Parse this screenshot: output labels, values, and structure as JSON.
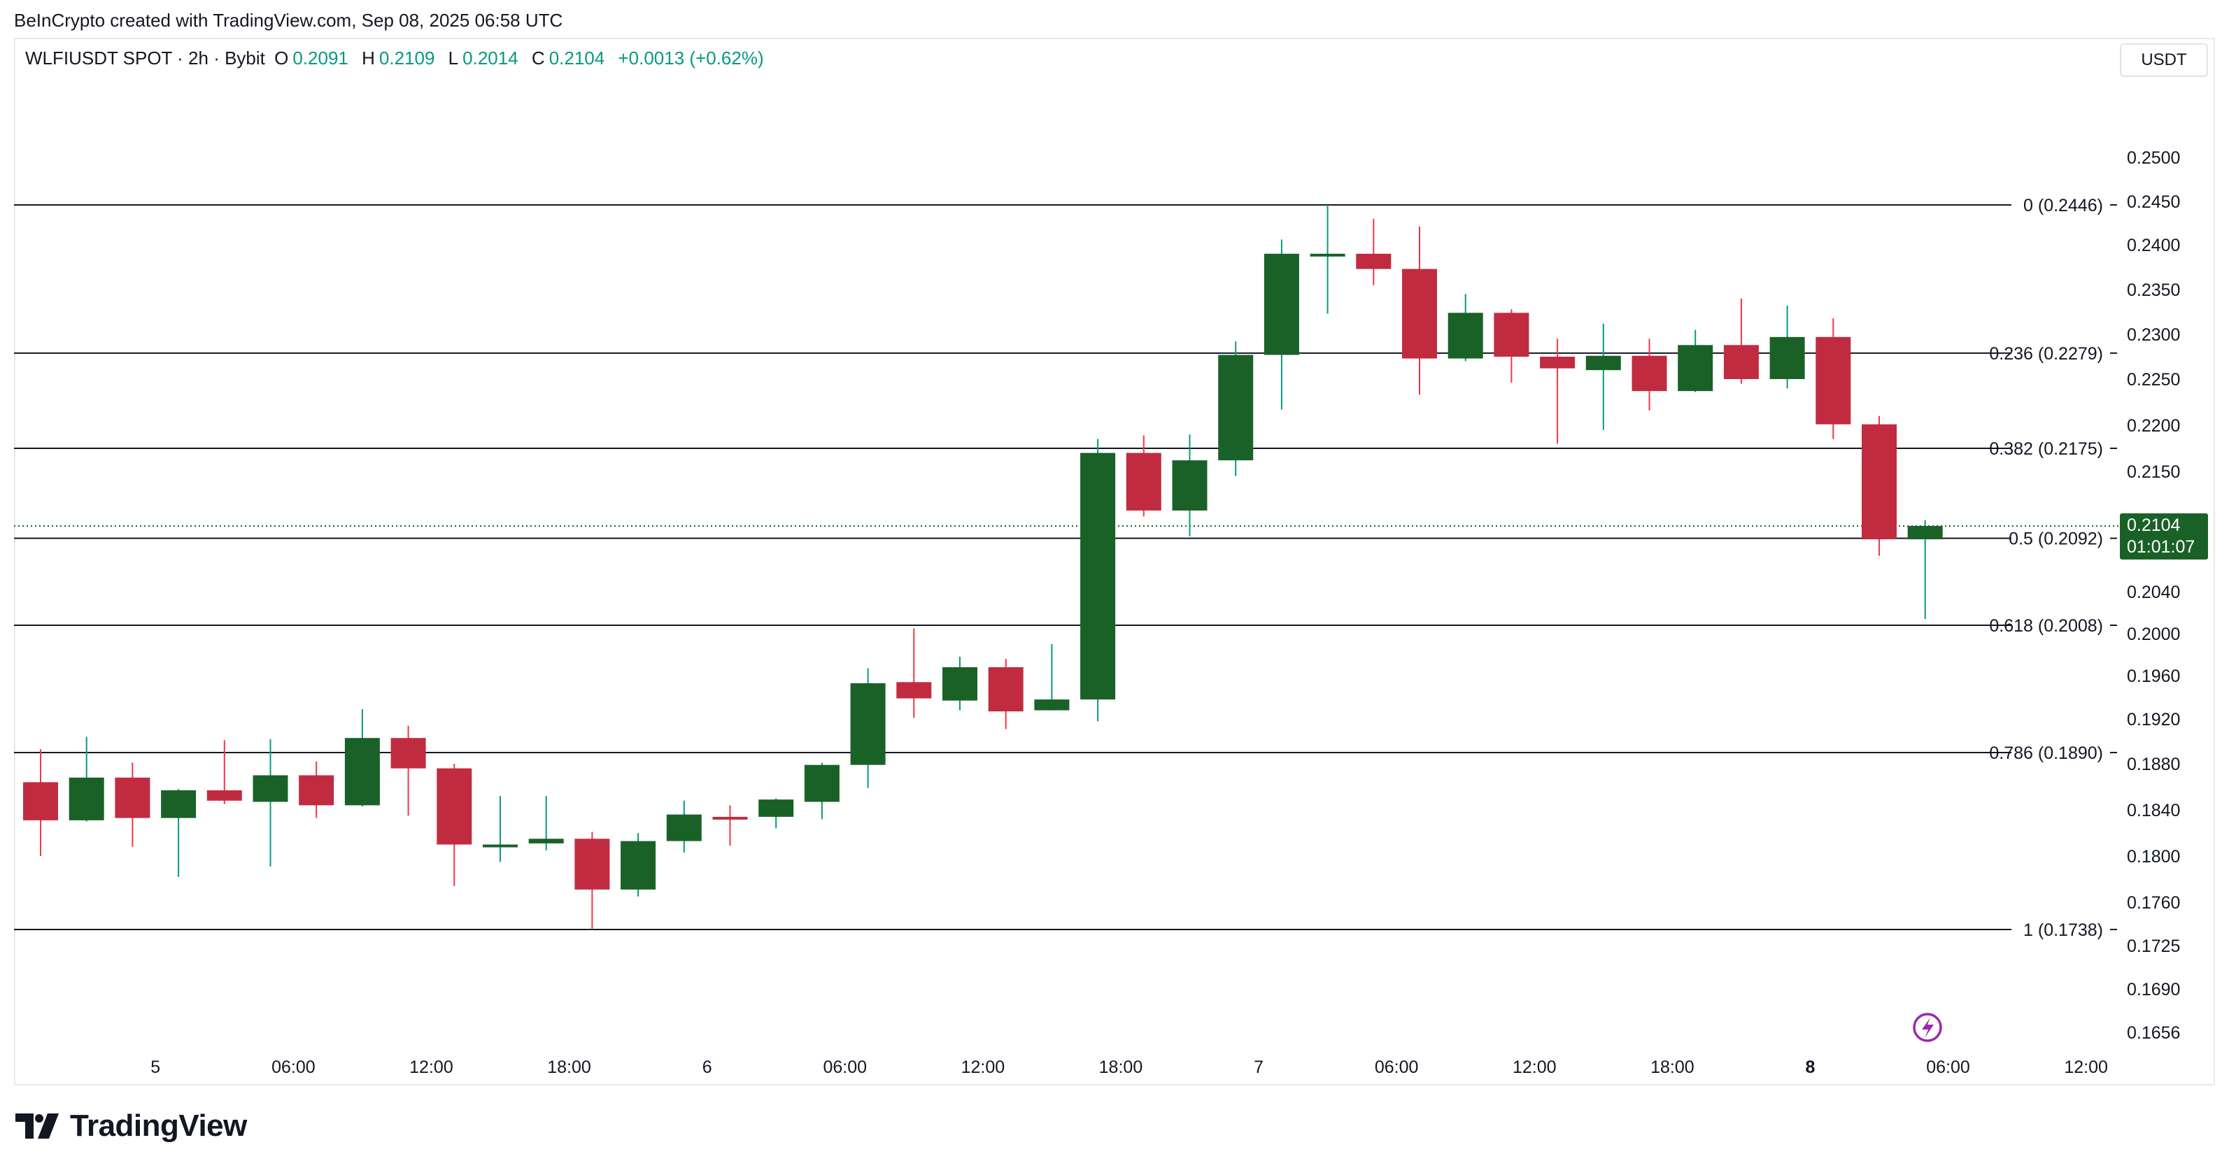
{
  "attribution": "BeInCrypto created with TradingView.com, Sep 08, 2025 06:58 UTC",
  "header": {
    "symbol": "WLFIUSDT SPOT · 2h · Bybit",
    "open_label": "O",
    "open": "0.2091",
    "high_label": "H",
    "high": "0.2109",
    "low_label": "L",
    "low": "0.2014",
    "close_label": "C",
    "close": "0.2104",
    "change": "+0.0013 (+0.62%)"
  },
  "currency": "USDT",
  "brand": "TradingView",
  "icons": {
    "logo": "tradingview-logo-icon",
    "event": "lightning-event-icon"
  },
  "colors": {
    "up": "#1a6128",
    "up_wick": "#089981",
    "down": "#c12b40",
    "down_wick": "#f23645",
    "accent": "#089981"
  },
  "chart_data": {
    "type": "candlestick",
    "x_tick_labels": [
      {
        "label": "5",
        "bar": 2.5
      },
      {
        "label": "06:00",
        "bar": 5.5
      },
      {
        "label": "12:00",
        "bar": 8.5
      },
      {
        "label": "18:00",
        "bar": 11.5
      },
      {
        "label": "6",
        "bar": 14.5
      },
      {
        "label": "06:00",
        "bar": 17.5
      },
      {
        "label": "12:00",
        "bar": 20.5
      },
      {
        "label": "18:00",
        "bar": 23.5
      },
      {
        "label": "7",
        "bar": 26.5
      },
      {
        "label": "06:00",
        "bar": 29.5
      },
      {
        "label": "12:00",
        "bar": 32.5
      },
      {
        "label": "18:00",
        "bar": 35.5
      },
      {
        "label": "8",
        "bar": 38.5,
        "bold": true
      },
      {
        "label": "06:00",
        "bar": 41.5
      },
      {
        "label": "12:00",
        "bar": 44.5
      }
    ],
    "y_tick_labels": [
      "0.2500",
      "0.2450",
      "0.2400",
      "0.2350",
      "0.2300",
      "0.2250",
      "0.2200",
      "0.2150",
      "0.2040",
      "0.2000",
      "0.1960",
      "0.1920",
      "0.1880",
      "0.1840",
      "0.1800",
      "0.1760",
      "0.1725",
      "0.1690",
      "0.1656"
    ],
    "fib_levels": [
      {
        "label": "0 (0.2446)",
        "value": 0.2446
      },
      {
        "label": "0.236 (0.2279)",
        "value": 0.2279
      },
      {
        "label": "0.382 (0.2175)",
        "value": 0.2175
      },
      {
        "label": "0.5 (0.2092)",
        "value": 0.2092
      },
      {
        "label": "0.618 (0.2008)",
        "value": 0.2008
      },
      {
        "label": "0.786 (0.1890)",
        "value": 0.189
      },
      {
        "label": "1 (0.1738)",
        "value": 0.1738
      }
    ],
    "last_price": {
      "value": 0.2104,
      "price_label": "0.2104",
      "countdown": "01:01:07"
    },
    "candles": [
      {
        "o": 0.1864,
        "h": 0.1893,
        "l": 0.18,
        "c": 0.1831
      },
      {
        "o": 0.1831,
        "h": 0.1904,
        "l": 0.183,
        "c": 0.1868
      },
      {
        "o": 0.1868,
        "h": 0.1881,
        "l": 0.1808,
        "c": 0.1833
      },
      {
        "o": 0.1833,
        "h": 0.1858,
        "l": 0.1782,
        "c": 0.1857
      },
      {
        "o": 0.1857,
        "h": 0.1901,
        "l": 0.1845,
        "c": 0.1848
      },
      {
        "o": 0.1847,
        "h": 0.1902,
        "l": 0.1791,
        "c": 0.187
      },
      {
        "o": 0.187,
        "h": 0.1882,
        "l": 0.1833,
        "c": 0.1844
      },
      {
        "o": 0.1844,
        "h": 0.1929,
        "l": 0.1843,
        "c": 0.1903
      },
      {
        "o": 0.1903,
        "h": 0.1914,
        "l": 0.1835,
        "c": 0.1876
      },
      {
        "o": 0.1876,
        "h": 0.188,
        "l": 0.1774,
        "c": 0.181
      },
      {
        "o": 0.181,
        "h": 0.1852,
        "l": 0.1795,
        "c": 0.181
      },
      {
        "o": 0.1811,
        "h": 0.1852,
        "l": 0.1805,
        "c": 0.1815
      },
      {
        "o": 0.1815,
        "h": 0.1821,
        "l": 0.1738,
        "c": 0.1771
      },
      {
        "o": 0.1771,
        "h": 0.182,
        "l": 0.1765,
        "c": 0.1813
      },
      {
        "o": 0.1813,
        "h": 0.1848,
        "l": 0.1803,
        "c": 0.1836
      },
      {
        "o": 0.1834,
        "h": 0.1844,
        "l": 0.1809,
        "c": 0.1832
      },
      {
        "o": 0.1834,
        "h": 0.185,
        "l": 0.1824,
        "c": 0.1849
      },
      {
        "o": 0.1847,
        "h": 0.1881,
        "l": 0.1832,
        "c": 0.1879
      },
      {
        "o": 0.1879,
        "h": 0.1967,
        "l": 0.1859,
        "c": 0.1953
      },
      {
        "o": 0.1954,
        "h": 0.2005,
        "l": 0.1921,
        "c": 0.1939
      },
      {
        "o": 0.1937,
        "h": 0.1978,
        "l": 0.1928,
        "c": 0.1968
      },
      {
        "o": 0.1968,
        "h": 0.1976,
        "l": 0.1911,
        "c": 0.1927
      },
      {
        "o": 0.1928,
        "h": 0.199,
        "l": 0.1928,
        "c": 0.1938
      },
      {
        "o": 0.1938,
        "h": 0.2185,
        "l": 0.1918,
        "c": 0.217
      },
      {
        "o": 0.217,
        "h": 0.2189,
        "l": 0.2112,
        "c": 0.2117
      },
      {
        "o": 0.2117,
        "h": 0.219,
        "l": 0.2094,
        "c": 0.2162
      },
      {
        "o": 0.2162,
        "h": 0.2292,
        "l": 0.2146,
        "c": 0.2277
      },
      {
        "o": 0.2277,
        "h": 0.2406,
        "l": 0.2217,
        "c": 0.239
      },
      {
        "o": 0.239,
        "h": 0.2446,
        "l": 0.2323,
        "c": 0.239
      },
      {
        "o": 0.239,
        "h": 0.243,
        "l": 0.2355,
        "c": 0.2373
      },
      {
        "o": 0.2373,
        "h": 0.2421,
        "l": 0.2233,
        "c": 0.2273
      },
      {
        "o": 0.2273,
        "h": 0.2345,
        "l": 0.227,
        "c": 0.2324
      },
      {
        "o": 0.2324,
        "h": 0.2328,
        "l": 0.2246,
        "c": 0.2275
      },
      {
        "o": 0.2275,
        "h": 0.2295,
        "l": 0.218,
        "c": 0.2262
      },
      {
        "o": 0.226,
        "h": 0.2312,
        "l": 0.2195,
        "c": 0.2276
      },
      {
        "o": 0.2276,
        "h": 0.2295,
        "l": 0.2216,
        "c": 0.2237
      },
      {
        "o": 0.2237,
        "h": 0.2305,
        "l": 0.2236,
        "c": 0.2288
      },
      {
        "o": 0.2288,
        "h": 0.234,
        "l": 0.2245,
        "c": 0.225
      },
      {
        "o": 0.225,
        "h": 0.2332,
        "l": 0.224,
        "c": 0.2297
      },
      {
        "o": 0.2297,
        "h": 0.2318,
        "l": 0.2185,
        "c": 0.2201
      },
      {
        "o": 0.2201,
        "h": 0.221,
        "l": 0.2075,
        "c": 0.2091
      },
      {
        "o": 0.2091,
        "h": 0.2109,
        "l": 0.2014,
        "c": 0.2104
      }
    ]
  }
}
